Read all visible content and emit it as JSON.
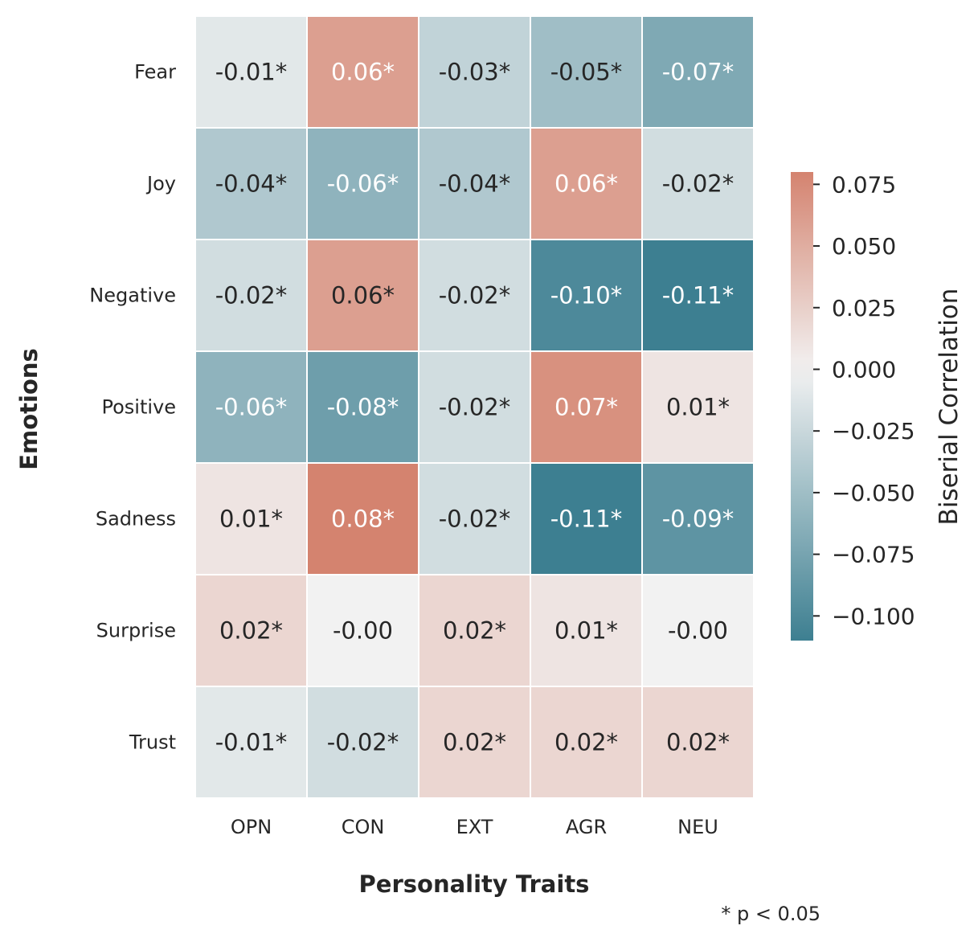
{
  "chart_data": {
    "type": "heatmap",
    "xlabel": "Personality Traits",
    "ylabel": "Emotions",
    "x_categories": [
      "OPN",
      "CON",
      "EXT",
      "AGR",
      "NEU"
    ],
    "y_categories": [
      "Fear",
      "Joy",
      "Negative",
      "Positive",
      "Sadness",
      "Surprise",
      "Trust"
    ],
    "values": [
      [
        -0.01,
        0.06,
        -0.03,
        -0.05,
        -0.07
      ],
      [
        -0.04,
        -0.06,
        -0.04,
        0.06,
        -0.02
      ],
      [
        -0.02,
        0.06,
        -0.02,
        -0.1,
        -0.11
      ],
      [
        -0.06,
        -0.08,
        -0.02,
        0.07,
        0.01
      ],
      [
        0.01,
        0.08,
        -0.02,
        -0.11,
        -0.09
      ],
      [
        0.02,
        -0.0,
        0.02,
        0.01,
        -0.0
      ],
      [
        -0.01,
        -0.02,
        0.02,
        0.02,
        0.02
      ]
    ],
    "annotations": [
      [
        "-0.01*",
        "0.06*",
        "-0.03*",
        "-0.05*",
        "-0.07*"
      ],
      [
        "-0.04*",
        "-0.06*",
        "-0.04*",
        "0.06*",
        "-0.02*"
      ],
      [
        "-0.02*",
        "0.06*",
        "-0.02*",
        "-0.10*",
        "-0.11*"
      ],
      [
        "-0.06*",
        "-0.08*",
        "-0.02*",
        "0.07*",
        "0.01*"
      ],
      [
        "0.01*",
        "0.08*",
        "-0.02*",
        "-0.11*",
        "-0.09*"
      ],
      [
        "0.02*",
        "-0.00",
        "0.02*",
        "0.01*",
        "-0.00"
      ],
      [
        "-0.01*",
        "-0.02*",
        "0.02*",
        "0.02*",
        "0.02*"
      ]
    ],
    "colorbar": {
      "label": "Biserial Correlation",
      "min": -0.11,
      "max": 0.08,
      "ticks": [
        0.075,
        0.05,
        0.025,
        0.0,
        -0.025,
        -0.05,
        -0.075,
        -0.1
      ],
      "tick_labels": [
        "0.075",
        "0.050",
        "0.025",
        "0.000",
        "−0.025",
        "−0.050",
        "−0.075",
        "−0.100"
      ],
      "colors": {
        "negative": "#3d7f91",
        "center": "#f2f2f2",
        "positive": "#d4836f"
      }
    },
    "note": "* p < 0.05",
    "grid": false
  }
}
